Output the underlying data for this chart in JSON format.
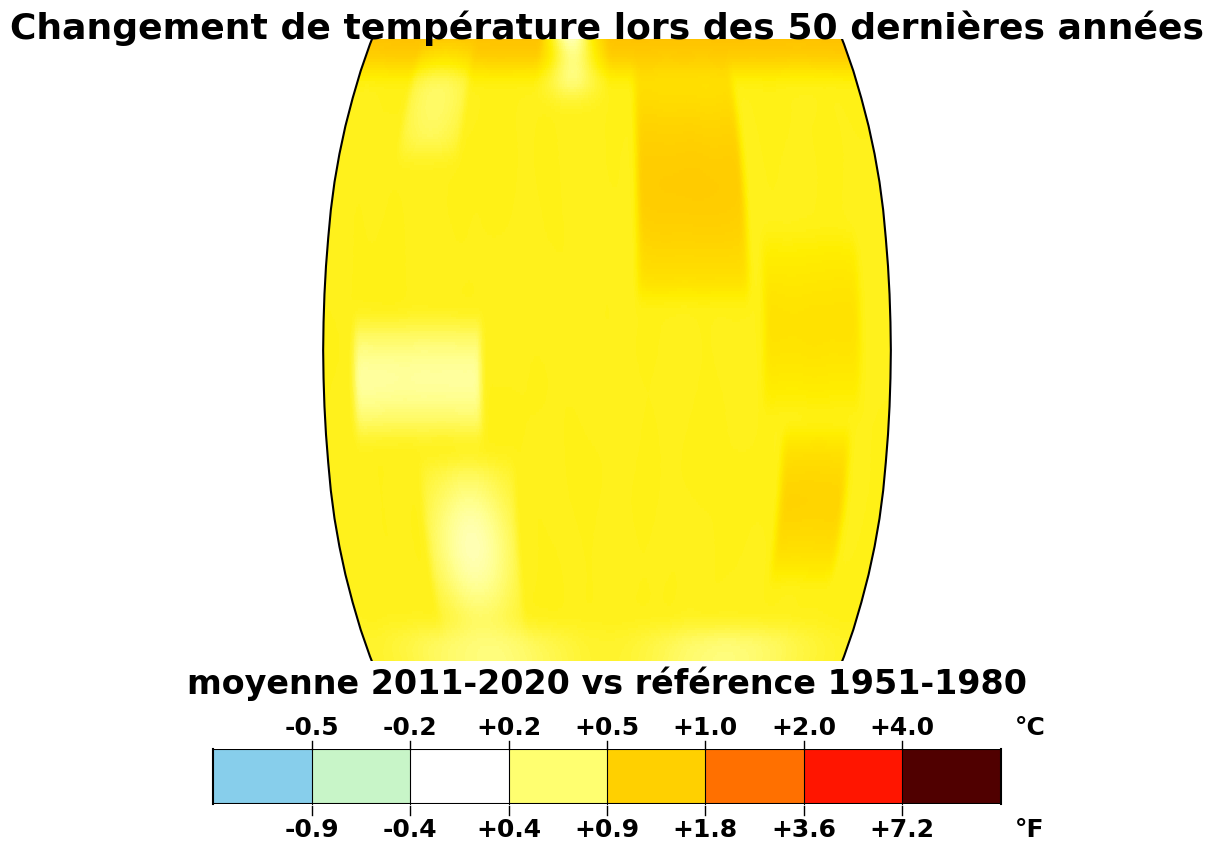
{
  "title": "Changement de température lors des 50 dernières années",
  "subtitle": "moyenne 2011-2020 vs référence 1951-1980",
  "colorbar_ticks_c": [
    "-0.5",
    "-0.2",
    "+0.2",
    "+0.5",
    "+1.0",
    "+2.0",
    "+4.0"
  ],
  "colorbar_ticks_f": [
    "-0.9",
    "-0.4",
    "+0.4",
    "+0.9",
    "+1.8",
    "+3.6",
    "+7.2"
  ],
  "colorbar_label_c": "°C",
  "colorbar_label_f": "°F",
  "colorbar_colors": [
    "#87CEEB",
    "#C8F5C8",
    "#FFFFFF",
    "#FFFF70",
    "#FFD000",
    "#FF7000",
    "#FF1500",
    "#500000"
  ],
  "background_color": "#FFFFFF",
  "title_fontsize": 26,
  "subtitle_fontsize": 24,
  "tick_fontsize": 18
}
